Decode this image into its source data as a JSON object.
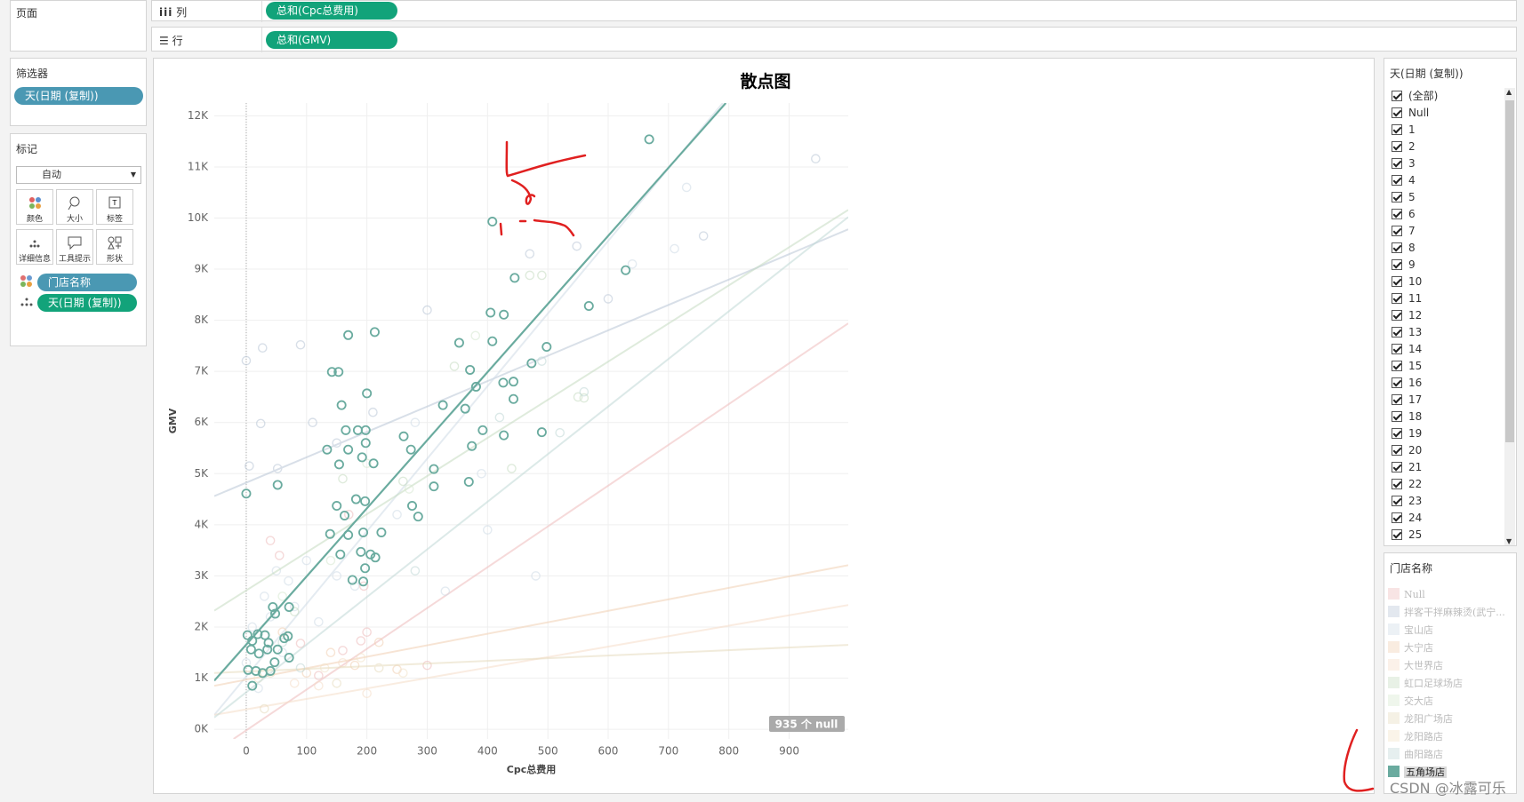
{
  "shelves": {
    "pages": "页面",
    "columns_label": "列",
    "columns_pill": "总和(Cpc总费用)",
    "rows_label": "行",
    "rows_pill": "总和(GMV)"
  },
  "filters": {
    "title": "筛选器",
    "pill": "天(日期 (复制))"
  },
  "marks": {
    "title": "标记",
    "type": "自动",
    "buttons": [
      "颜色",
      "大小",
      "标签",
      "详细信息",
      "工具提示",
      "形状"
    ],
    "fields": [
      "门店名称",
      "天(日期 (复制))"
    ]
  },
  "day_filter": {
    "title": "天(日期 (复制))",
    "items": [
      "(全部)",
      "Null",
      "1",
      "2",
      "3",
      "4",
      "5",
      "6",
      "7",
      "8",
      "9",
      "10",
      "11",
      "12",
      "13",
      "14",
      "15",
      "16",
      "17",
      "18",
      "19",
      "20",
      "21",
      "22",
      "23",
      "24",
      "25"
    ]
  },
  "watermark": "CSDN @冰露可乐",
  "chart_data": {
    "type": "scatter",
    "title": "散点图",
    "x_label": "Cpc总费用",
    "y_label": "GMV",
    "null_badge": "935 个 null",
    "legend_title": "门店名称",
    "highlight": 10,
    "grid": true,
    "xlim": [
      -53,
      998
    ],
    "ylim": [
      -190,
      12250
    ],
    "xticks": [
      0,
      100,
      200,
      300,
      400,
      500,
      600,
      700,
      800,
      900
    ],
    "yticks": [
      {
        "value": 0,
        "label": "0K"
      },
      {
        "value": 1000,
        "label": "1K"
      },
      {
        "value": 2000,
        "label": "2K"
      },
      {
        "value": 3000,
        "label": "3K"
      },
      {
        "value": 4000,
        "label": "4K"
      },
      {
        "value": 5000,
        "label": "5K"
      },
      {
        "value": 6000,
        "label": "6K"
      },
      {
        "value": 7000,
        "label": "7K"
      },
      {
        "value": 8000,
        "label": "8K"
      },
      {
        "value": 9000,
        "label": "9K"
      },
      {
        "value": 10000,
        "label": "10K"
      },
      {
        "value": 11000,
        "label": "11K"
      },
      {
        "value": 12000,
        "label": "12K"
      }
    ],
    "series": [
      {
        "name": "Null",
        "color": "#eebbbb",
        "x": [
          40,
          55,
          190,
          160,
          195,
          170,
          200,
          300,
          120,
          90
        ],
        "values": [
          3690,
          3400,
          1730,
          1540,
          2800,
          4200,
          1900,
          1250,
          1050,
          1680
        ],
        "trend": {
          "x": [
            -21,
            998
          ],
          "y": [
            -190,
            7940
          ]
        }
      },
      {
        "name": "拌客干拌麻辣烫(武宁...",
        "color": "#b9c6d6",
        "x": [
          0,
          27,
          90,
          24,
          5,
          52,
          600,
          944,
          758,
          548,
          470,
          300,
          210,
          150,
          110
        ],
        "values": [
          7210,
          7460,
          7520,
          5980,
          5150,
          5100,
          8420,
          11160,
          9650,
          9450,
          9300,
          8200,
          6200,
          5600,
          6000
        ],
        "trend": {
          "x": [
            -53,
            998
          ],
          "y": [
            4560,
            9780
          ]
        }
      },
      {
        "name": "宝山店",
        "color": "#cfdbe6",
        "x": [
          0,
          10,
          20,
          30,
          40,
          50,
          60,
          70,
          80,
          100,
          120,
          150,
          180,
          250,
          400,
          480,
          390,
          330,
          280,
          640,
          730,
          710
        ],
        "values": [
          1300,
          2000,
          800,
          2600,
          2200,
          3100,
          1500,
          2900,
          2400,
          3300,
          2100,
          3000,
          2800,
          4200,
          3900,
          3000,
          5000,
          2700,
          6000,
          9100,
          10600,
          9400
        ],
        "trend": {
          "x": [
            -53,
            790
          ],
          "y": [
            280,
            12250
          ]
        }
      },
      {
        "name": "大宁店",
        "color": "#f1cfb2",
        "x": [
          100,
          180,
          250,
          140,
          60,
          220
        ],
        "values": [
          1100,
          1250,
          1170,
          1500,
          1900,
          1700
        ],
        "trend": {
          "x": [
            -53,
            998
          ],
          "y": [
            850,
            3210
          ]
        }
      },
      {
        "name": "大世界店",
        "color": "#f5ddc8",
        "x": [
          200,
          120,
          80,
          160
        ],
        "values": [
          700,
          850,
          900,
          1300
        ],
        "trend": {
          "x": [
            -53,
            998
          ],
          "y": [
            280,
            2430
          ]
        }
      },
      {
        "name": "虹口足球场店",
        "color": "#c5dbc1",
        "x": [
          470,
          490,
          345,
          260,
          160,
          560,
          550,
          440,
          80,
          30
        ],
        "values": [
          8880,
          8880,
          7100,
          4850,
          4900,
          6480,
          6500,
          5100,
          2300,
          1100
        ],
        "trend": {
          "x": [
            -53,
            998
          ],
          "y": [
            2320,
            10160
          ]
        }
      },
      {
        "name": "交大店",
        "color": "#d6e8d0",
        "x": [
          380,
          200,
          140,
          60,
          270
        ],
        "values": [
          7700,
          5200,
          3300,
          2600,
          4700
        ]
      },
      {
        "name": "龙阳广场店",
        "color": "#e6dbbd",
        "x": [
          30,
          220,
          150,
          40
        ],
        "values": [
          400,
          1200,
          900,
          1100
        ],
        "trend": {
          "x": [
            -53,
            998
          ],
          "y": [
            1100,
            1650
          ]
        }
      },
      {
        "name": "龙阳路店",
        "color": "#f2e3c9",
        "x": [
          20,
          130,
          190,
          260
        ],
        "values": [
          1000,
          1200,
          1400,
          1100
        ]
      },
      {
        "name": "曲阳路店",
        "color": "#c0d8d6",
        "x": [
          520,
          560,
          420,
          490,
          90,
          60,
          280
        ],
        "values": [
          5800,
          6600,
          6100,
          7200,
          1200,
          1700,
          3100
        ],
        "trend": {
          "x": [
            -53,
            998
          ],
          "y": [
            230,
            10020
          ]
        }
      },
      {
        "name": "五角场店",
        "color": "#6aab9f",
        "x": [
          668,
          408,
          445,
          405,
          427,
          353,
          408,
          498,
          473,
          169,
          213,
          142,
          153,
          371,
          381,
          426,
          443,
          568,
          629,
          200,
          158,
          326,
          363,
          443,
          165,
          185,
          198,
          261,
          392,
          427,
          490,
          134,
          169,
          198,
          192,
          211,
          273,
          374,
          311,
          154,
          52,
          0,
          311,
          369,
          182,
          197,
          150,
          275,
          285,
          163,
          224,
          194,
          139,
          169,
          156,
          190,
          206,
          214,
          176,
          194,
          197,
          44,
          71,
          48,
          2,
          19,
          31,
          10,
          37,
          63,
          69,
          8,
          21,
          35,
          52,
          47,
          3,
          16,
          27,
          40,
          71,
          10
        ],
        "values": [
          11540,
          9930,
          8830,
          8150,
          8110,
          7560,
          7590,
          7480,
          7160,
          7710,
          7770,
          6990,
          6990,
          7030,
          6700,
          6780,
          6800,
          8280,
          8980,
          6570,
          6340,
          6340,
          6270,
          6460,
          5850,
          5850,
          5850,
          5730,
          5850,
          5750,
          5810,
          5470,
          5470,
          5600,
          5320,
          5200,
          5470,
          5540,
          5090,
          5180,
          4780,
          4610,
          4750,
          4840,
          4500,
          4460,
          4370,
          4370,
          4160,
          4180,
          3850,
          3850,
          3820,
          3800,
          3420,
          3470,
          3420,
          3360,
          2920,
          2890,
          3150,
          2390,
          2390,
          2260,
          1840,
          1860,
          1840,
          1730,
          1690,
          1780,
          1820,
          1560,
          1480,
          1560,
          1560,
          1310,
          1160,
          1140,
          1100,
          1140,
          1400,
          850
        ],
        "trend": {
          "x": [
            -53,
            795
          ],
          "y": [
            950,
            12250
          ]
        }
      }
    ]
  }
}
